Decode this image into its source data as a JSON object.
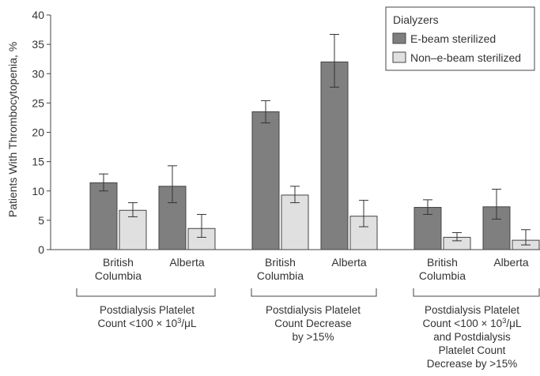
{
  "chart_data": {
    "type": "bar",
    "ylabel": "Patients With Thrombocytopenia, %",
    "ylim": [
      0,
      40
    ],
    "yticks": [
      0,
      5,
      10,
      15,
      20,
      25,
      30,
      35,
      40
    ],
    "legend": {
      "title": "Dialyzers",
      "position": "top-right"
    },
    "series": [
      {
        "name": "E-beam sterilized",
        "color": "#7f7f7f"
      },
      {
        "name": "Non–e-beam sterilized",
        "color": "#e0e0e0"
      }
    ],
    "groups": [
      {
        "label_lines": [
          "Postdialysis Platelet",
          "Count <100 × 10³/μL"
        ],
        "categories": [
          {
            "label_lines": [
              "British",
              "Columbia"
            ],
            "values": [
              11.4,
              6.7
            ],
            "error_low": [
              10.0,
              5.6
            ],
            "error_high": [
              12.9,
              8.0
            ]
          },
          {
            "label_lines": [
              "Alberta"
            ],
            "values": [
              10.8,
              3.6
            ],
            "error_low": [
              8.0,
              2.1
            ],
            "error_high": [
              14.3,
              6.0
            ]
          }
        ]
      },
      {
        "label_lines": [
          "Postdialysis Platelet",
          "Count Decrease",
          "by >15%"
        ],
        "categories": [
          {
            "label_lines": [
              "British",
              "Columbia"
            ],
            "values": [
              23.5,
              9.3
            ],
            "error_low": [
              21.6,
              8.0
            ],
            "error_high": [
              25.4,
              10.8
            ]
          },
          {
            "label_lines": [
              "Alberta"
            ],
            "values": [
              32.0,
              5.7
            ],
            "error_low": [
              27.7,
              3.9
            ],
            "error_high": [
              36.7,
              8.4
            ]
          }
        ]
      },
      {
        "label_lines": [
          "Postdialysis Platelet",
          "Count <100 × 10³/μL",
          "and Postdialysis",
          "Platelet Count",
          "Decrease by >15%"
        ],
        "categories": [
          {
            "label_lines": [
              "British",
              "Columbia"
            ],
            "values": [
              7.2,
              2.1
            ],
            "error_low": [
              6.0,
              1.5
            ],
            "error_high": [
              8.5,
              2.9
            ]
          },
          {
            "label_lines": [
              "Alberta"
            ],
            "values": [
              7.3,
              1.6
            ],
            "error_low": [
              5.2,
              0.8
            ],
            "error_high": [
              10.3,
              3.4
            ]
          }
        ]
      }
    ]
  }
}
